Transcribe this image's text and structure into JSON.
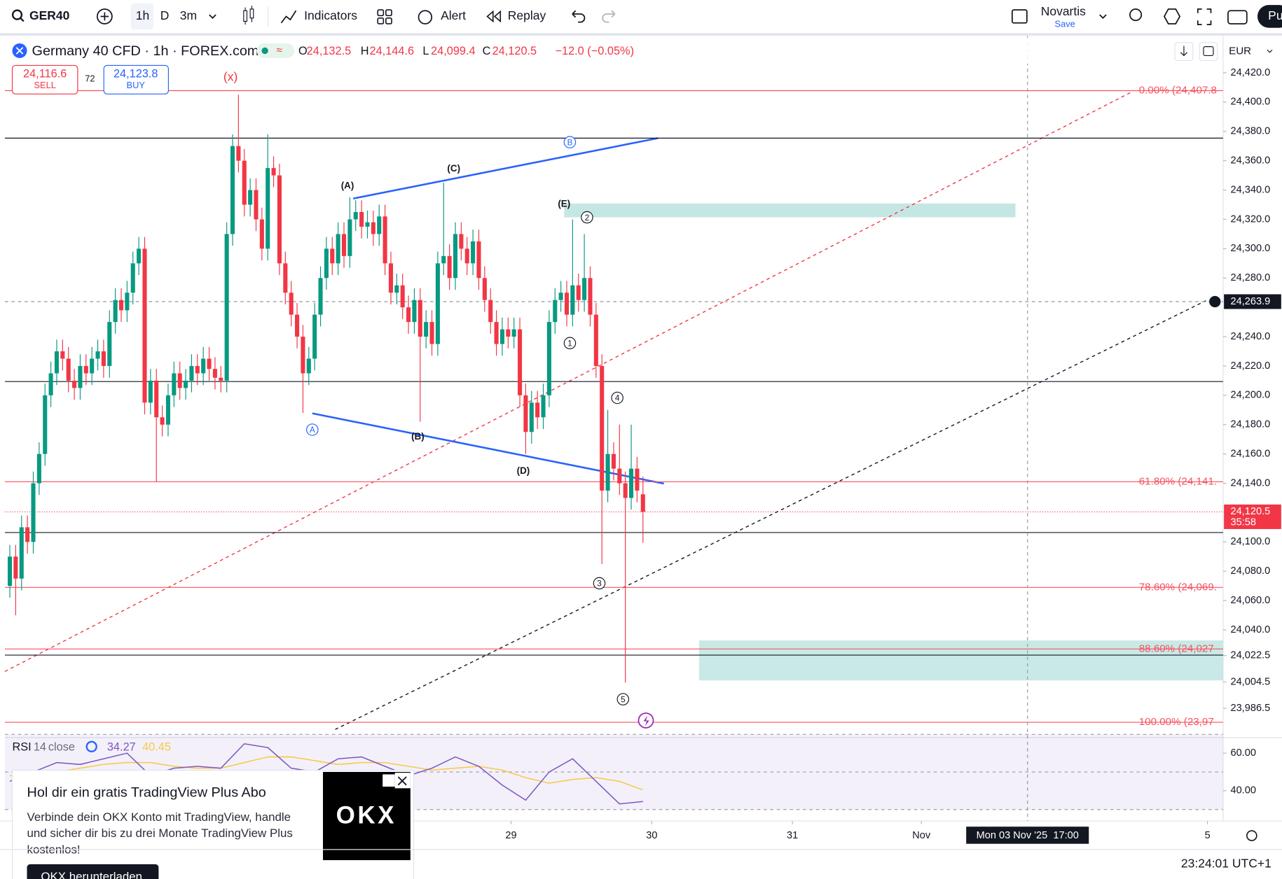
{
  "toolbar": {
    "symbol": "GER40",
    "intervals": [
      "1h",
      "D",
      "3m"
    ],
    "indicators": "Indicators",
    "alert": "Alert",
    "replay": "Replay",
    "layout_name": "Novartis",
    "layout_save": "Save",
    "publish": "Pu"
  },
  "legend": {
    "title": "Germany 40 CFD · 1h · FOREX.com",
    "open_key": "O",
    "open": "24,132.5",
    "high_key": "H",
    "high": "24,144.6",
    "low_key": "L",
    "low": "24,099.4",
    "close_key": "C",
    "close": "24,120.5",
    "change": "−12.0 (−0.05%)",
    "sell_price": "24,116.6",
    "sell": "SELL",
    "spread": "72",
    "buy_price": "24,123.8",
    "buy": "BUY",
    "currency": "EUR"
  },
  "chart_data": {
    "type": "candlestick",
    "up_color": "#089981",
    "down_color": "#f23645",
    "xlim": [
      -0.84,
      206.97
    ],
    "xticks": [
      {
        "value": 85.5,
        "label": "29"
      },
      {
        "value": 109.5,
        "label": "30"
      },
      {
        "value": 133.5,
        "label": "31"
      },
      {
        "value": 155.5,
        "label": "Nov"
      },
      {
        "value": 204.3,
        "label": "5"
      }
    ],
    "ylim": [
      23968.2,
      24444.5
    ],
    "yticks": [
      {
        "value": 24420,
        "label": "24,420.0"
      },
      {
        "value": 24400,
        "label": "24,400.0"
      },
      {
        "value": 24380,
        "label": "24,380.0"
      },
      {
        "value": 24360,
        "label": "24,360.0"
      },
      {
        "value": 24340,
        "label": "24,340.0"
      },
      {
        "value": 24320,
        "label": "24,320.0"
      },
      {
        "value": 24300,
        "label": "24,300.0"
      },
      {
        "value": 24280,
        "label": "24,280.0"
      },
      {
        "value": 24240,
        "label": "24,240.0"
      },
      {
        "value": 24220,
        "label": "24,220.0"
      },
      {
        "value": 24200,
        "label": "24,200.0"
      },
      {
        "value": 24180,
        "label": "24,180.0"
      },
      {
        "value": 24160,
        "label": "24,160.0"
      },
      {
        "value": 24140,
        "label": "24,140.0"
      },
      {
        "value": 24100,
        "label": "24,100.0"
      },
      {
        "value": 24080,
        "label": "24,080.0"
      },
      {
        "value": 24060,
        "label": "24,060.0"
      },
      {
        "value": 24040,
        "label": "24,040.0"
      },
      {
        "value": 24022.5,
        "label": "24,022.5"
      },
      {
        "value": 24004.5,
        "label": "24,004.5"
      },
      {
        "value": 23986.5,
        "label": "23,986.5"
      }
    ],
    "open": [
      24070,
      24090,
      24075,
      24110,
      24100,
      24140,
      24160,
      24200,
      24215,
      24230,
      24225,
      24210,
      24205,
      24220,
      24215,
      24225,
      24230,
      24220,
      24250,
      24265,
      24258,
      24270,
      24290,
      24300,
      24195,
      24210,
      24185,
      24180,
      24200,
      24215,
      24205,
      24210,
      24220,
      24215,
      24225,
      24218,
      24212,
      24210,
      24310,
      24370,
      24360,
      24330,
      24340,
      24320,
      24300,
      24355,
      24350,
      24290,
      24270,
      24255,
      24240,
      24215,
      24225,
      24255,
      24280,
      24300,
      24290,
      24310,
      24295,
      24320,
      24325,
      24315,
      24318,
      24310,
      24322,
      24290,
      24270,
      24275,
      24260,
      24250,
      24265,
      24240,
      24250,
      24235,
      24290,
      24295,
      24280,
      24310,
      24300,
      24290,
      24305,
      24280,
      24265,
      24250,
      24235,
      24245,
      24240,
      24245,
      24200,
      24175,
      24195,
      24185,
      24200,
      24250,
      24265,
      24270,
      24255,
      24275,
      24265,
      24280,
      24255,
      24220,
      24135,
      24160,
      24150,
      24140,
      24130,
      24150,
      24132.5
    ],
    "high": [
      24098,
      24098,
      24118,
      24118,
      24148,
      24168,
      24208,
      24223,
      24238,
      24238,
      24233,
      24218,
      24228,
      24228,
      24233,
      24238,
      24238,
      24258,
      24273,
      24273,
      24278,
      24298,
      24308,
      24308,
      24218,
      24218,
      24193,
      24208,
      24223,
      24223,
      24218,
      24228,
      24228,
      24233,
      24233,
      24226,
      24220,
      24318,
      24378,
      24405,
      24368,
      24348,
      24348,
      24328,
      24378,
      24363,
      24358,
      24298,
      24278,
      24263,
      24248,
      24233,
      24263,
      24288,
      24308,
      24308,
      24318,
      24318,
      24335,
      24333,
      24333,
      24326,
      24326,
      24330,
      24330,
      24298,
      24283,
      24283,
      24268,
      24273,
      24273,
      24258,
      24258,
      24298,
      24345,
      24303,
      24318,
      24318,
      24308,
      24313,
      24313,
      24288,
      24273,
      24258,
      24253,
      24253,
      24253,
      24253,
      24208,
      24203,
      24203,
      24208,
      24258,
      24273,
      24278,
      24278,
      24320,
      24283,
      24310,
      24288,
      24263,
      24228,
      24190,
      24168,
      24180,
      24148,
      24180,
      24158,
      24144.6
    ],
    "low": [
      24062,
      24050,
      24067,
      24092,
      24092,
      24132,
      24152,
      24192,
      24207,
      24217,
      24202,
      24197,
      24197,
      24207,
      24207,
      24217,
      24212,
      24212,
      24242,
      24250,
      24250,
      24262,
      24282,
      24187,
      24187,
      24141,
      24172,
      24172,
      24192,
      24197,
      24197,
      24202,
      24207,
      24207,
      24210,
      24204,
      24202,
      24202,
      24302,
      24352,
      24322,
      24322,
      24312,
      24292,
      24292,
      24342,
      24282,
      24262,
      24247,
      24232,
      24188,
      24207,
      24217,
      24247,
      24272,
      24282,
      24282,
      24287,
      24287,
      24312,
      24307,
      24307,
      24302,
      24302,
      24282,
      24262,
      24262,
      24252,
      24242,
      24242,
      24182,
      24232,
      24227,
      24227,
      24282,
      24272,
      24272,
      24292,
      24282,
      24282,
      24272,
      24257,
      24242,
      24227,
      24227,
      24232,
      24232,
      24192,
      24160,
      24167,
      24177,
      24177,
      24192,
      24242,
      24257,
      24247,
      24247,
      24257,
      24257,
      24247,
      24212,
      24085,
      24127,
      24142,
      24132,
      24004,
      24122,
      24127,
      24099.4
    ],
    "close": [
      24090,
      24075,
      24110,
      24100,
      24140,
      24160,
      24200,
      24215,
      24230,
      24225,
      24210,
      24205,
      24220,
      24215,
      24225,
      24230,
      24220,
      24250,
      24265,
      24258,
      24270,
      24290,
      24300,
      24195,
      24210,
      24185,
      24180,
      24200,
      24215,
      24205,
      24210,
      24220,
      24215,
      24225,
      24218,
      24212,
      24210,
      24310,
      24370,
      24360,
      24330,
      24340,
      24320,
      24300,
      24355,
      24350,
      24290,
      24270,
      24255,
      24240,
      24215,
      24225,
      24255,
      24280,
      24300,
      24290,
      24310,
      24295,
      24320,
      24325,
      24315,
      24318,
      24310,
      24322,
      24290,
      24270,
      24275,
      24260,
      24250,
      24265,
      24240,
      24250,
      24235,
      24290,
      24295,
      24280,
      24310,
      24300,
      24290,
      24305,
      24280,
      24265,
      24250,
      24235,
      24245,
      24240,
      24245,
      24200,
      24175,
      24195,
      24185,
      24200,
      24250,
      24265,
      24270,
      24255,
      24275,
      24265,
      24280,
      24255,
      24220,
      24135,
      24160,
      24150,
      24140,
      24130,
      24150,
      24135,
      24120.5
    ],
    "levels": [
      24375.4,
      24209.4,
      24106.4,
      24022.8
    ],
    "fib_levels": [
      {
        "value": 24407.8,
        "label": "0.00% (24,407.8"
      },
      {
        "value": 24141,
        "label": "61.80% (24,141."
      },
      {
        "value": 24069,
        "label": "78.60% (24,069."
      },
      {
        "value": 24027,
        "label": "88.60% (24,027"
      },
      {
        "value": 23977,
        "label": "100.00% (23,97"
      }
    ],
    "last_price": {
      "value": 24120.5,
      "label": "24,120.5",
      "countdown": "35:58"
    },
    "crosshair": {
      "x": 173.6,
      "price": 24263.9,
      "price_label": "24,263.9",
      "time_label": "Mon 03 Nov '25  17:00"
    },
    "rsi": {
      "title": "RSI",
      "length": "14",
      "source": "close",
      "ylim": [
        24.8,
        67.4
      ],
      "band": [
        70,
        50,
        30
      ],
      "yticks": [
        {
          "value": 60,
          "label": "60.00"
        },
        {
          "value": 40,
          "label": "40.00"
        }
      ],
      "x": [
        0,
        4,
        8,
        12,
        16,
        20,
        24,
        28,
        32,
        36,
        40,
        44,
        48,
        52,
        56,
        60,
        64,
        68,
        72,
        76,
        80,
        84,
        88,
        92,
        96,
        100,
        104,
        108
      ],
      "values": [
        45,
        50,
        55,
        54,
        57,
        60,
        48,
        52,
        53,
        52,
        65,
        63,
        52,
        50,
        57,
        58,
        53,
        48,
        52,
        58,
        53,
        43,
        35,
        50,
        57,
        45,
        33,
        34.27
      ],
      "signal": [
        48,
        48,
        50,
        52,
        54,
        55,
        55,
        53,
        52,
        52,
        55,
        58,
        58,
        56,
        54,
        55,
        55,
        53,
        51,
        52,
        53,
        51,
        47,
        44,
        46,
        47,
        45,
        40.45
      ],
      "color": "#7e57c2",
      "signal_color": "#f7c948"
    }
  },
  "annotations": {
    "waves": [
      "(x)",
      "(A)",
      "(C)",
      "(E)",
      "(B)",
      "(D)"
    ],
    "circled": [
      "B",
      "A",
      "2",
      "1",
      "4",
      "3",
      "5"
    ]
  },
  "ad": {
    "title": "Hol dir ein gratis TradingView Plus Abo",
    "body": [
      "Verbinde dein OKX Konto mit TradingView, handle",
      "und sicher dir bis zu drei Monate TradingView Plus",
      "kostenlos!"
    ],
    "button": "OKX herunterladen",
    "logo": "OKX"
  },
  "status": {
    "clock": "23:24:01 UTC+1"
  }
}
